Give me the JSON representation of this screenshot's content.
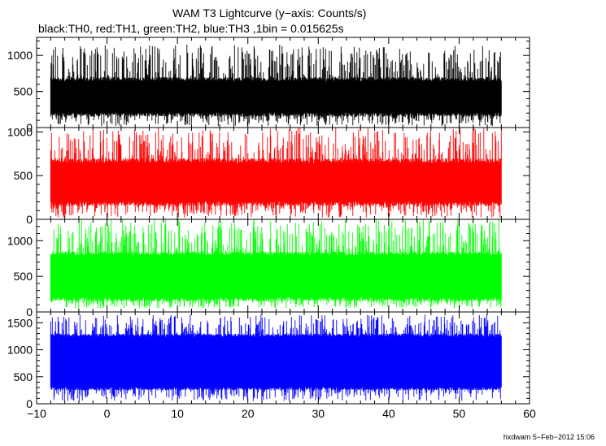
{
  "title": "WAM T3 Lightcurve (y−axis: Counts/s)",
  "subtitle": "black:TH0, red:TH1, green:TH2, blue:TH3 ,1bin = 0.015625s",
  "footer": "hxdwam  5−Feb−2012 15:06",
  "chart_data": [
    {
      "type": "line",
      "name": "TH0",
      "color": "#000000",
      "xlim": [
        -10,
        60
      ],
      "ylim": [
        0,
        1250
      ],
      "x_range": [
        -8,
        56
      ],
      "band": [
        150,
        700
      ],
      "spike_range": [
        20,
        1150
      ],
      "yticks": [
        0,
        500,
        1000
      ],
      "ytick_labels": [
        "0",
        "500",
        "1000"
      ]
    },
    {
      "type": "line",
      "name": "TH1",
      "color": "#ff0000",
      "xlim": [
        -10,
        60
      ],
      "ylim": [
        0,
        1050
      ],
      "x_range": [
        -8,
        56
      ],
      "band": [
        150,
        700
      ],
      "spike_range": [
        20,
        1050
      ],
      "yticks": [
        0,
        500,
        1000
      ],
      "ytick_labels": [
        "0",
        "500",
        "1000"
      ]
    },
    {
      "type": "line",
      "name": "TH2",
      "color": "#00ff00",
      "xlim": [
        -10,
        60
      ],
      "ylim": [
        0,
        1300
      ],
      "x_range": [
        -8,
        56
      ],
      "band": [
        150,
        850
      ],
      "spike_range": [
        50,
        1300
      ],
      "yticks": [
        0,
        500,
        1000
      ],
      "ytick_labels": [
        "0",
        "500",
        "1000"
      ]
    },
    {
      "type": "line",
      "name": "TH3",
      "color": "#0000ff",
      "xlim": [
        -10,
        60
      ],
      "ylim": [
        0,
        1700
      ],
      "x_range": [
        -8,
        56
      ],
      "band": [
        250,
        1300
      ],
      "spike_range": [
        50,
        1650
      ],
      "yticks": [
        0,
        500,
        1000,
        1500
      ],
      "ytick_labels": [
        "0",
        "500",
        "1000",
        "1500"
      ]
    }
  ],
  "xticks": [
    -10,
    0,
    10,
    20,
    30,
    40,
    50,
    60
  ],
  "xtick_labels": [
    "−10",
    "0",
    "10",
    "20",
    "30",
    "40",
    "50",
    "60"
  ]
}
